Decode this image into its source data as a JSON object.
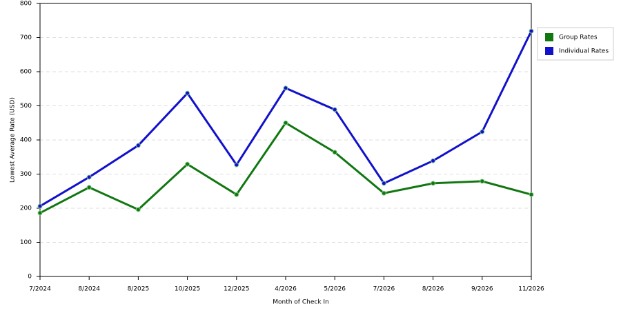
{
  "chart_data": {
    "type": "line",
    "x_label": "Month of Check In",
    "y_label": "Lowest Average Rate (USD)",
    "categories": [
      "7/2024",
      "8/2024",
      "8/2025",
      "10/2025",
      "12/2025",
      "4/2026",
      "5/2026",
      "7/2026",
      "8/2026",
      "9/2026",
      "11/2026"
    ],
    "series": [
      {
        "name": "Group Rates",
        "color": "#117711",
        "values": [
          186,
          261,
          196,
          329,
          240,
          450,
          364,
          244,
          273,
          279,
          240
        ]
      },
      {
        "name": "Individual Rates",
        "color": "#1111cc",
        "values": [
          206,
          291,
          384,
          537,
          327,
          552,
          489,
          273,
          339,
          424,
          719
        ]
      }
    ],
    "ylim": [
      0,
      800
    ],
    "yticks": [
      0,
      100,
      200,
      300,
      400,
      500,
      600,
      700,
      800
    ],
    "grid": true,
    "legend": "right"
  }
}
